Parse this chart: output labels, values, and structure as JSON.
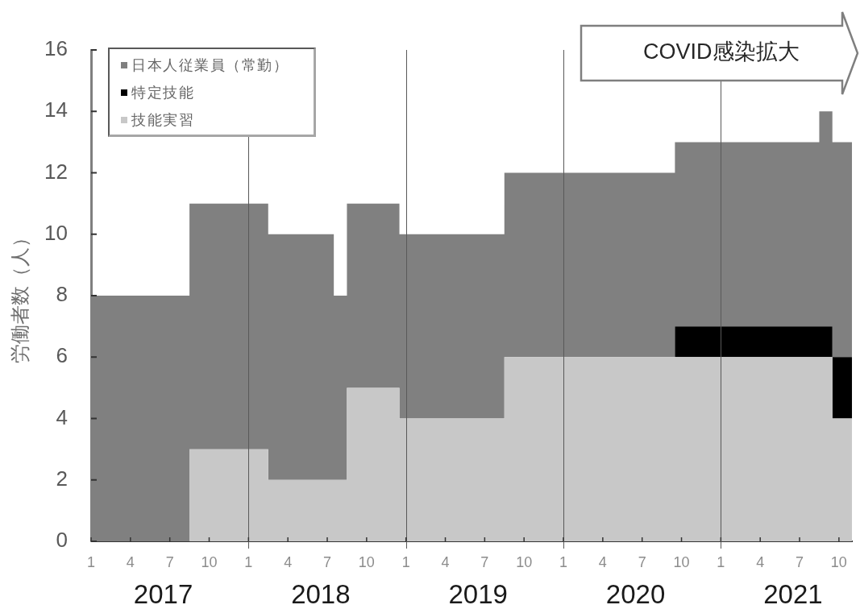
{
  "chart_data": {
    "type": "area",
    "stacked": true,
    "x": [
      "2017-01",
      "2017-02",
      "2017-03",
      "2017-04",
      "2017-05",
      "2017-06",
      "2017-07",
      "2017-08",
      "2017-09",
      "2017-10",
      "2017-11",
      "2017-12",
      "2018-01",
      "2018-02",
      "2018-03",
      "2018-04",
      "2018-05",
      "2018-06",
      "2018-07",
      "2018-08",
      "2018-09",
      "2018-10",
      "2018-11",
      "2018-12",
      "2019-01",
      "2019-02",
      "2019-03",
      "2019-04",
      "2019-05",
      "2019-06",
      "2019-07",
      "2019-08",
      "2019-09",
      "2019-10",
      "2019-11",
      "2019-12",
      "2020-01",
      "2020-02",
      "2020-03",
      "2020-04",
      "2020-05",
      "2020-06",
      "2020-07",
      "2020-08",
      "2020-09",
      "2020-10",
      "2020-11",
      "2020-12",
      "2021-01",
      "2021-02",
      "2021-03",
      "2021-04",
      "2021-05",
      "2021-06",
      "2021-07",
      "2021-08",
      "2021-09",
      "2021-10",
      "2021-11"
    ],
    "xlim": [
      "2017-01",
      "2021-11"
    ],
    "xticks": [
      {
        "value": "2017-01",
        "label": "1"
      },
      {
        "value": "2017-04",
        "label": "4"
      },
      {
        "value": "2017-07",
        "label": "7"
      },
      {
        "value": "2017-10",
        "label": "10"
      },
      {
        "value": "2018-01",
        "label": "1"
      },
      {
        "value": "2018-04",
        "label": "4"
      },
      {
        "value": "2018-07",
        "label": "7"
      },
      {
        "value": "2018-10",
        "label": "10"
      },
      {
        "value": "2019-01",
        "label": "1"
      },
      {
        "value": "2019-04",
        "label": "4"
      },
      {
        "value": "2019-07",
        "label": "7"
      },
      {
        "value": "2019-10",
        "label": "10"
      },
      {
        "value": "2020-01",
        "label": "1"
      },
      {
        "value": "2020-04",
        "label": "4"
      },
      {
        "value": "2020-07",
        "label": "7"
      },
      {
        "value": "2020-10",
        "label": "10"
      },
      {
        "value": "2021-01",
        "label": "1"
      },
      {
        "value": "2021-04",
        "label": "4"
      },
      {
        "value": "2021-07",
        "label": "7"
      },
      {
        "value": "2021-10",
        "label": "10"
      }
    ],
    "ylim": [
      0,
      16
    ],
    "yticks": [
      0,
      2,
      4,
      6,
      8,
      10,
      12,
      14,
      16
    ],
    "ylabel": "労働者数（人）",
    "series": [
      {
        "name": "技能実習",
        "color": "#c8c8c8",
        "values": [
          0,
          0,
          0,
          0,
          0,
          0,
          0,
          0,
          3,
          3,
          3,
          3,
          3,
          3,
          2,
          2,
          2,
          2,
          2,
          2,
          5,
          5,
          5,
          5,
          4,
          4,
          4,
          4,
          4,
          4,
          4,
          4,
          6,
          6,
          6,
          6,
          6,
          6,
          6,
          6,
          6,
          6,
          6,
          6,
          6,
          6,
          6,
          6,
          6,
          6,
          6,
          6,
          6,
          6,
          6,
          6,
          6,
          4,
          4
        ]
      },
      {
        "name": "特定技能",
        "color": "#000000",
        "values": [
          0,
          0,
          0,
          0,
          0,
          0,
          0,
          0,
          0,
          0,
          0,
          0,
          0,
          0,
          0,
          0,
          0,
          0,
          0,
          0,
          0,
          0,
          0,
          0,
          0,
          0,
          0,
          0,
          0,
          0,
          0,
          0,
          0,
          0,
          0,
          0,
          0,
          0,
          0,
          0,
          0,
          0,
          0,
          0,
          0,
          1,
          1,
          1,
          1,
          1,
          1,
          1,
          1,
          1,
          1,
          1,
          1,
          2,
          2
        ]
      },
      {
        "name": "日本人従業員（常勤）",
        "color": "#808080",
        "values": [
          8,
          8,
          8,
          8,
          8,
          8,
          8,
          8,
          8,
          8,
          8,
          8,
          8,
          8,
          8,
          8,
          8,
          8,
          8,
          6,
          6,
          6,
          6,
          6,
          6,
          6,
          6,
          6,
          6,
          6,
          6,
          6,
          6,
          6,
          6,
          6,
          6,
          6,
          6,
          6,
          6,
          6,
          6,
          6,
          6,
          6,
          6,
          6,
          6,
          6,
          6,
          6,
          6,
          6,
          6,
          6,
          7,
          7,
          7
        ]
      }
    ],
    "legend": "top left",
    "ref_lines": [
      {
        "axis": "x",
        "value": "2018-01",
        "color": "#595959"
      },
      {
        "axis": "x",
        "value": "2019-01",
        "color": "#595959"
      },
      {
        "axis": "x",
        "value": "2020-01",
        "color": "#595959"
      },
      {
        "axis": "x",
        "value": "2021-01",
        "color": "#595959"
      }
    ],
    "annotations": [
      "COVID感染拡大",
      "2017",
      "2018",
      "2019",
      "2020",
      "2021"
    ]
  }
}
